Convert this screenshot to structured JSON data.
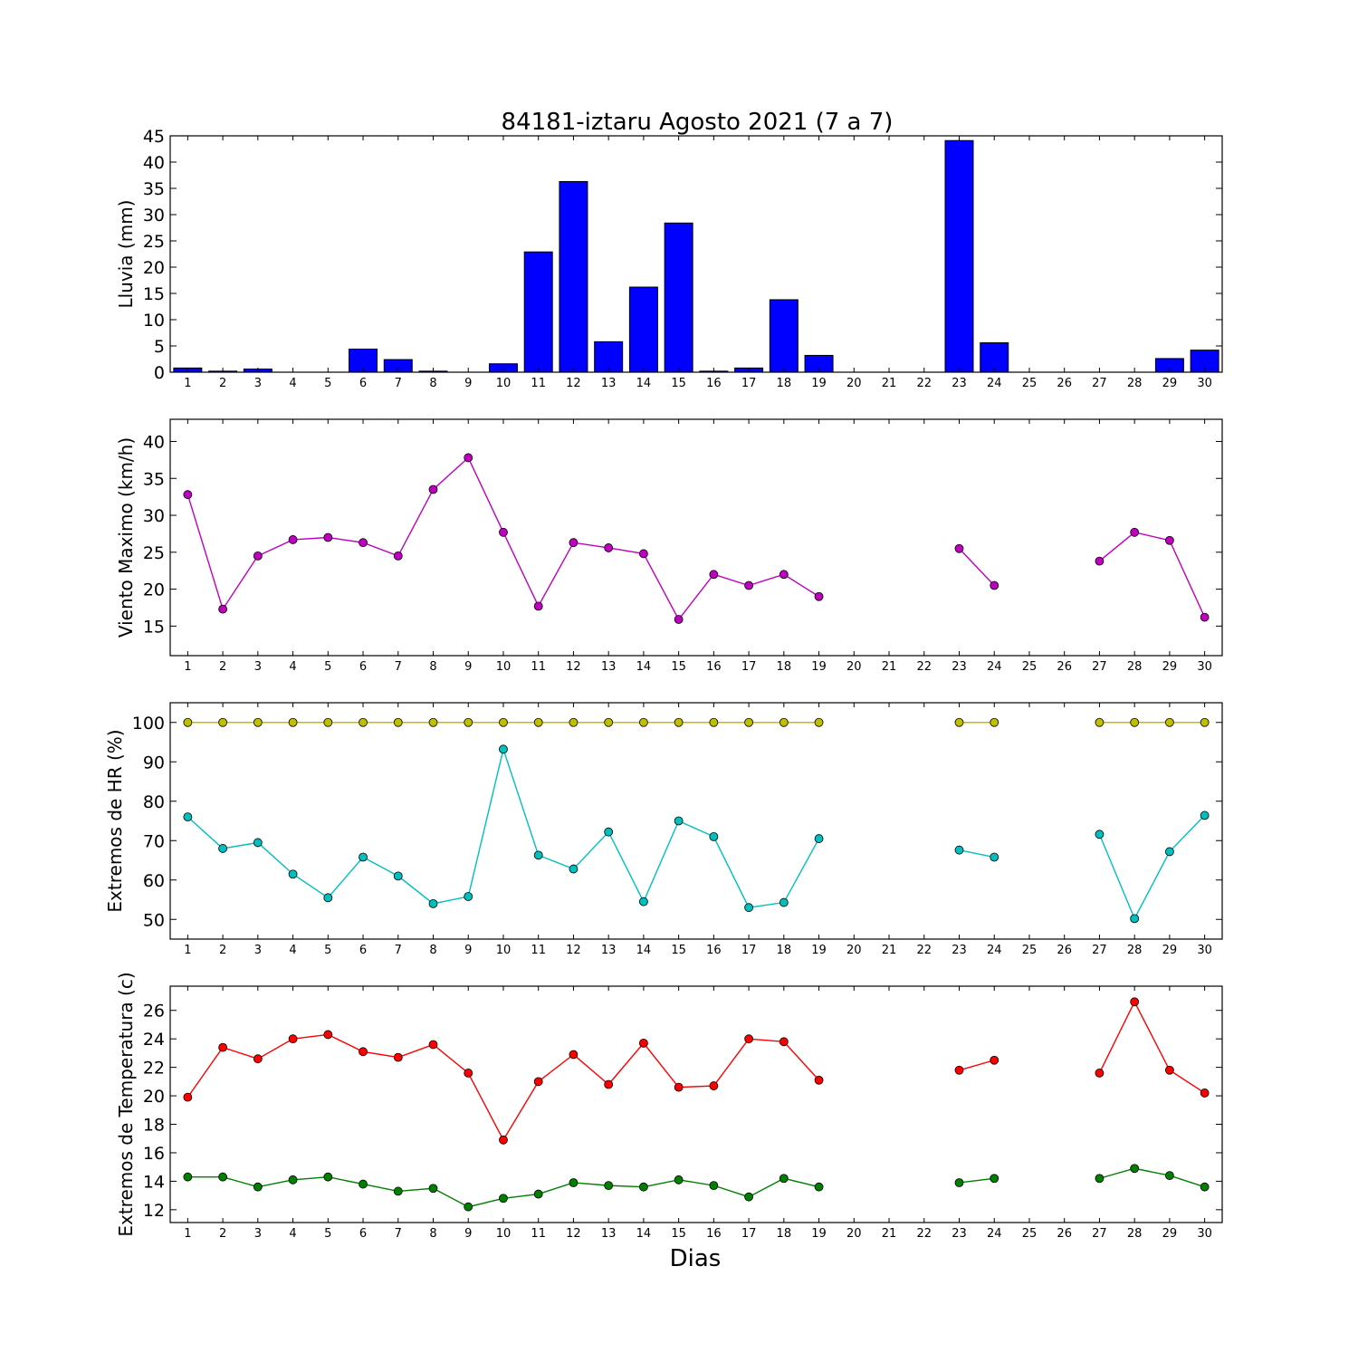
{
  "figure": {
    "title": "84181-iztaru Agosto 2021  (7 a 7)",
    "xlabel": "Dias"
  },
  "chart_data": [
    {
      "type": "bar",
      "ylabel": "Lluvia (mm)",
      "ylim": [
        0,
        45
      ],
      "yticks": [
        0,
        5,
        10,
        15,
        20,
        25,
        30,
        35,
        40,
        45
      ],
      "categories": [
        "1",
        "2",
        "3",
        "4",
        "5",
        "6",
        "7",
        "8",
        "9",
        "10",
        "11",
        "12",
        "13",
        "14",
        "15",
        "16",
        "17",
        "18",
        "19",
        "20",
        "21",
        "22",
        "23",
        "24",
        "25",
        "26",
        "27",
        "28",
        "29",
        "30"
      ],
      "values": [
        0.8,
        0.2,
        0.6,
        0,
        0,
        4.4,
        2.4,
        0.2,
        0,
        1.6,
        22.9,
        36.3,
        5.8,
        16.2,
        28.4,
        0.2,
        0.8,
        13.8,
        3.2,
        0,
        0,
        0,
        44.1,
        5.6,
        0,
        0,
        0,
        0,
        2.6,
        4.2
      ],
      "color": "#0000ff",
      "grid": false
    },
    {
      "type": "line",
      "ylabel": "Viento Maximo (km/h)",
      "ylim": [
        11,
        43
      ],
      "yticks": [
        15,
        20,
        25,
        30,
        35,
        40
      ],
      "x": [
        1,
        2,
        3,
        4,
        5,
        6,
        7,
        8,
        9,
        10,
        11,
        12,
        13,
        14,
        15,
        16,
        17,
        18,
        19,
        20,
        21,
        22,
        23,
        24,
        25,
        26,
        27,
        28,
        29,
        30
      ],
      "series": [
        {
          "color": "#bf00bf",
          "values": [
            32.8,
            17.3,
            24.5,
            26.7,
            27.0,
            26.3,
            24.5,
            33.5,
            37.8,
            27.7,
            17.7,
            26.3,
            25.6,
            24.8,
            15.9,
            22.0,
            20.5,
            22.0,
            19.0,
            null,
            null,
            null,
            25.5,
            20.5,
            null,
            null,
            23.8,
            27.7,
            26.6,
            16.2
          ]
        }
      ],
      "grid": false
    },
    {
      "type": "line",
      "ylabel": "Extremos de HR (%)",
      "ylim": [
        45,
        105
      ],
      "yticks": [
        50,
        60,
        70,
        80,
        90,
        100
      ],
      "x": [
        1,
        2,
        3,
        4,
        5,
        6,
        7,
        8,
        9,
        10,
        11,
        12,
        13,
        14,
        15,
        16,
        17,
        18,
        19,
        20,
        21,
        22,
        23,
        24,
        25,
        26,
        27,
        28,
        29,
        30
      ],
      "series": [
        {
          "color": "#bfbf00",
          "values": [
            100,
            100,
            100,
            100,
            100,
            100,
            100,
            100,
            100,
            100,
            100,
            100,
            100,
            100,
            100,
            100,
            100,
            100,
            100,
            null,
            null,
            null,
            100,
            100,
            null,
            null,
            100,
            100,
            100,
            100
          ]
        },
        {
          "color": "#00bfbf",
          "values": [
            76,
            68,
            69.5,
            61.5,
            55.5,
            65.8,
            61,
            54,
            55.8,
            93.2,
            66.3,
            62.8,
            72.2,
            54.5,
            75,
            71,
            53,
            54.3,
            70.5,
            null,
            null,
            null,
            67.6,
            65.8,
            null,
            null,
            71.6,
            50.2,
            67.2,
            76.4
          ]
        }
      ],
      "grid": false
    },
    {
      "type": "line",
      "ylabel": "Extremos de Temperatura (c)",
      "ylim": [
        11.1,
        27.7
      ],
      "yticks": [
        12,
        14,
        16,
        18,
        20,
        22,
        24,
        26
      ],
      "x": [
        1,
        2,
        3,
        4,
        5,
        6,
        7,
        8,
        9,
        10,
        11,
        12,
        13,
        14,
        15,
        16,
        17,
        18,
        19,
        20,
        21,
        22,
        23,
        24,
        25,
        26,
        27,
        28,
        29,
        30
      ],
      "series": [
        {
          "color": "#ff0000",
          "values": [
            19.9,
            23.4,
            22.6,
            24.0,
            24.3,
            23.1,
            22.7,
            23.6,
            21.6,
            16.9,
            21.0,
            22.9,
            20.8,
            23.7,
            20.6,
            20.7,
            24.0,
            23.8,
            21.1,
            null,
            null,
            null,
            21.8,
            22.5,
            null,
            null,
            21.6,
            26.6,
            21.8,
            20.2
          ]
        },
        {
          "color": "#007f00",
          "values": [
            14.3,
            14.3,
            13.6,
            14.1,
            14.3,
            13.8,
            13.3,
            13.5,
            12.2,
            12.8,
            13.1,
            13.9,
            13.7,
            13.6,
            14.1,
            13.7,
            12.9,
            14.2,
            13.6,
            null,
            null,
            null,
            13.9,
            14.2,
            null,
            null,
            14.2,
            14.9,
            14.4,
            13.6
          ]
        }
      ],
      "grid": false
    }
  ]
}
